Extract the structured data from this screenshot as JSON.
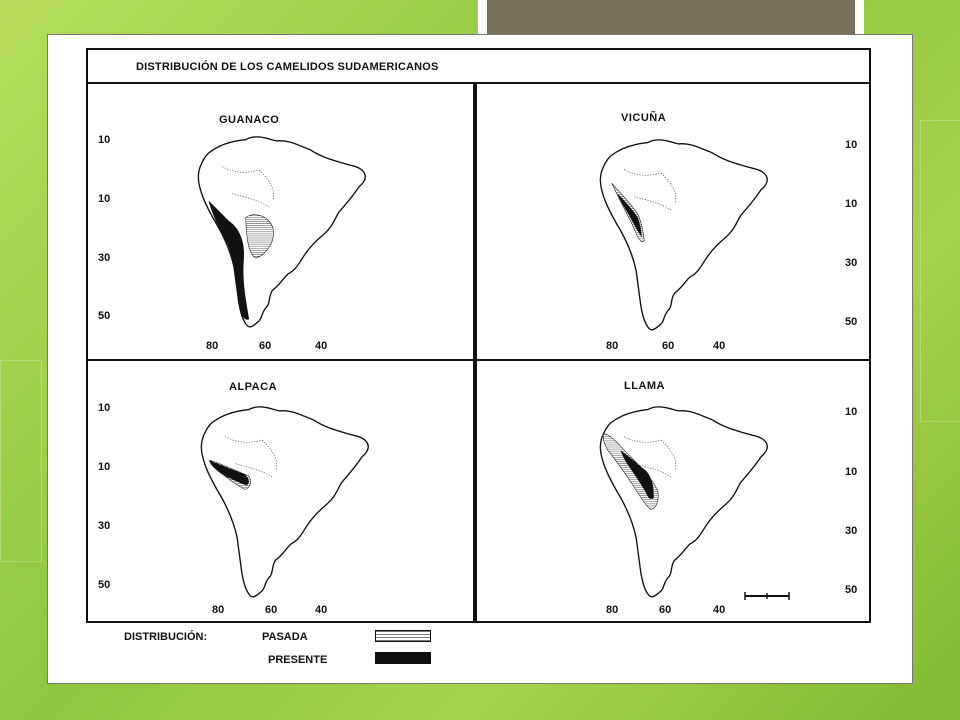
{
  "figure": {
    "title": "DISTRIBUCIÓN DE LOS CAMELIDOS SUDAMERICANOS",
    "panels": [
      {
        "name": "GUANACO",
        "lat_ticks": [
          "10",
          "10",
          "30",
          "50"
        ],
        "lon_ticks": [
          "80",
          "60",
          "40"
        ]
      },
      {
        "name": "VICUÑA",
        "lat_ticks": [
          "10",
          "10",
          "30",
          "50"
        ],
        "lon_ticks": [
          "80",
          "60",
          "40"
        ]
      },
      {
        "name": "ALPACA",
        "lat_ticks": [
          "10",
          "10",
          "30",
          "50"
        ],
        "lon_ticks": [
          "80",
          "60",
          "40"
        ]
      },
      {
        "name": "LLAMA",
        "lat_ticks": [
          "10",
          "10",
          "30",
          "50"
        ],
        "lon_ticks": [
          "80",
          "60",
          "40"
        ]
      }
    ],
    "legend": {
      "label": "DISTRIBUCIÓN:",
      "past": "PASADA",
      "present": "PRESENTE"
    }
  },
  "colors": {
    "background": "#8ec63f",
    "tab": "#7a6f5b",
    "ink": "#111111"
  }
}
